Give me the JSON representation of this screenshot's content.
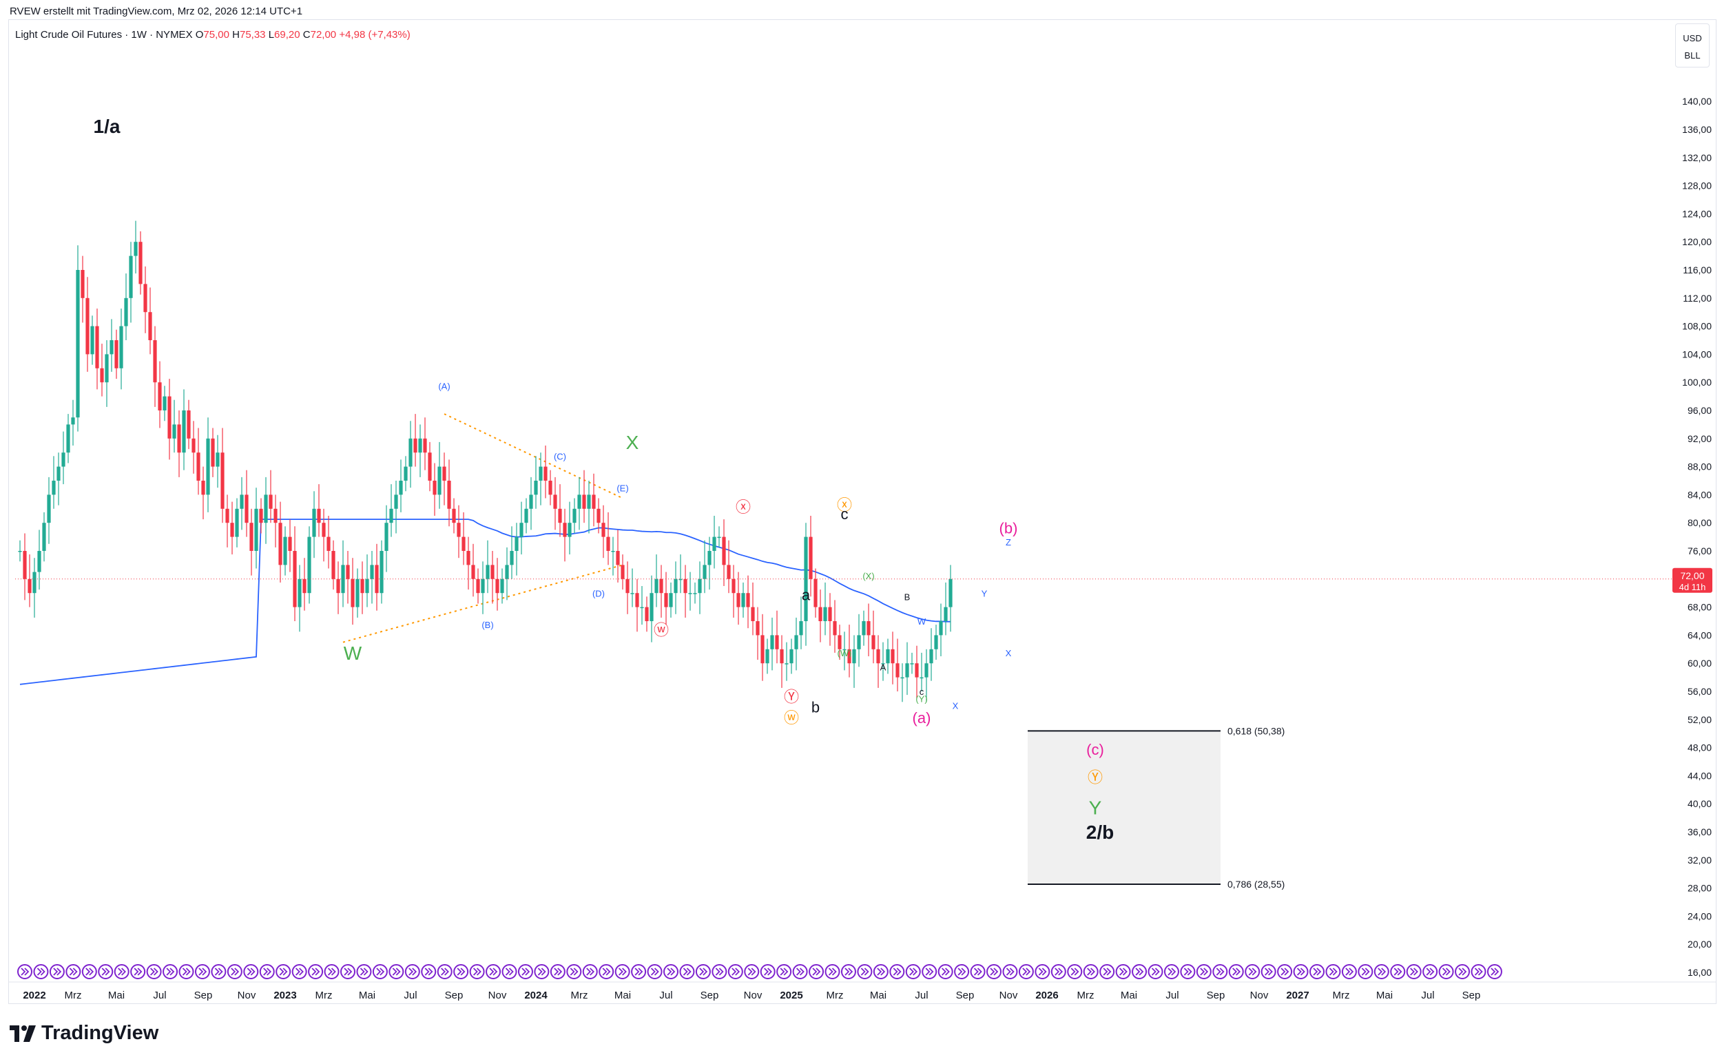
{
  "header": {
    "author_line": "RVEW erstellt mit TradingView.com, Mrz 02, 2026 12:14 UTC+1"
  },
  "legend": {
    "symbol": "Light Crude Oil Futures · 1W · NYMEX",
    "o_label": "O",
    "o_value": "75,00",
    "h_label": "H",
    "h_value": "75,33",
    "l_label": "L",
    "l_value": "69,20",
    "c_label": "C",
    "c_value": "72,00",
    "change": "+4,98 (+7,43%)"
  },
  "currency": {
    "unit": "USD",
    "measure": "BLL"
  },
  "price_label": {
    "price": "72,00",
    "countdown": "4d 11h"
  },
  "logo_text": "TradingView",
  "colors": {
    "up": "#22ab94",
    "down": "#f23645",
    "ma": "#2962ff",
    "triangle": "#ff9800",
    "green_label": "#4caf50",
    "magenta_label": "#e91e9c",
    "blue_label": "#2962ff",
    "red_label": "#f23645",
    "orange_label": "#ff9800",
    "box_fill": "#f0f0f0",
    "event_icon": "#7e22ce"
  },
  "chart_data": {
    "type": "candlestick",
    "title": "Light Crude Oil Futures · 1W · NYMEX",
    "ylim": [
      12,
      148
    ],
    "y_ticks": [
      "16,00",
      "20,00",
      "24,00",
      "28,00",
      "32,00",
      "36,00",
      "40,00",
      "44,00",
      "48,00",
      "52,00",
      "56,00",
      "60,00",
      "64,00",
      "68,00",
      "72,00",
      "76,00",
      "80,00",
      "84,00",
      "88,00",
      "92,00",
      "96,00",
      "100,00",
      "104,00",
      "108,00",
      "112,00",
      "116,00",
      "120,00",
      "124,00",
      "128,00",
      "132,00",
      "136,00",
      "140,00"
    ],
    "y_tick_values": [
      16,
      20,
      24,
      28,
      32,
      36,
      40,
      44,
      48,
      52,
      56,
      60,
      64,
      68,
      72,
      76,
      80,
      84,
      88,
      92,
      96,
      100,
      104,
      108,
      112,
      116,
      120,
      124,
      128,
      132,
      136,
      140
    ],
    "x_ticks": [
      "2022",
      "Mrz",
      "Mai",
      "Jul",
      "Sep",
      "Nov",
      "2023",
      "Mrz",
      "Mai",
      "Jul",
      "Sep",
      "Nov",
      "2024",
      "Mrz",
      "Mai",
      "Jul",
      "Sep",
      "Nov",
      "2025",
      "Mrz",
      "Mai",
      "Jul",
      "Sep",
      "Nov",
      "2026",
      "Mrz",
      "Mai",
      "Jul",
      "Sep",
      "Nov",
      "2027",
      "Mrz",
      "Mai",
      "Jul",
      "Sep"
    ],
    "x_tick_bold": [
      true,
      false,
      false,
      false,
      false,
      false,
      true,
      false,
      false,
      false,
      false,
      false,
      true,
      false,
      false,
      false,
      false,
      false,
      true,
      false,
      false,
      false,
      false,
      false,
      true,
      false,
      false,
      false,
      false,
      false,
      true,
      false,
      false,
      false,
      false
    ],
    "x_tick_week": [
      4,
      12,
      21,
      30,
      39,
      48,
      56,
      64,
      73,
      82,
      91,
      100,
      108,
      117,
      126,
      135,
      144,
      153,
      161,
      170,
      179,
      188,
      197,
      206,
      214,
      222,
      231,
      240,
      249,
      258,
      266,
      275,
      284,
      293,
      302
    ],
    "candles_weekly_close": [
      76,
      72,
      70,
      73,
      76,
      80,
      84,
      86,
      88,
      90,
      94,
      95,
      116,
      112,
      104,
      108,
      102,
      100,
      104,
      106,
      102,
      108,
      112,
      118,
      120,
      114,
      110,
      106,
      100,
      96,
      98,
      92,
      94,
      90,
      96,
      92,
      90,
      86,
      84,
      92,
      88,
      90,
      82,
      80,
      78,
      82,
      84,
      80,
      76,
      82,
      80,
      84,
      82,
      80,
      74,
      78,
      76,
      68,
      72,
      70,
      78,
      82,
      80,
      78,
      76,
      72,
      70,
      74,
      72,
      68,
      72,
      70,
      72,
      74,
      70,
      76,
      80,
      82,
      84,
      86,
      88,
      92,
      90,
      92,
      90,
      86,
      84,
      88,
      86,
      82,
      80,
      78,
      76,
      74,
      72,
      70,
      72,
      74,
      72,
      70,
      72,
      74,
      76,
      78,
      80,
      82,
      84,
      86,
      88,
      86,
      84,
      82,
      80,
      78,
      80,
      82,
      84,
      82,
      84,
      82,
      80,
      78,
      76,
      76,
      74,
      72,
      70,
      70,
      68,
      68,
      66,
      70,
      72,
      70,
      68,
      70,
      72,
      72,
      70,
      70,
      70,
      72,
      74,
      76,
      78,
      78,
      74,
      72,
      70,
      68,
      70,
      68,
      66,
      64,
      60,
      62,
      64,
      62,
      60,
      60,
      62,
      64,
      66,
      78,
      72,
      68,
      66,
      68,
      66,
      64,
      62,
      62,
      60,
      62,
      64,
      66,
      64,
      62,
      60,
      60,
      62,
      60,
      58,
      58,
      60,
      60,
      58,
      58,
      60,
      62,
      64,
      66,
      68,
      72
    ],
    "annotations": [
      {
        "text": "1/a",
        "color": "#131722",
        "size": "large",
        "bold": true,
        "price": 135.5,
        "week": 19
      },
      {
        "text": "W",
        "color": "#4caf50",
        "size": "large",
        "price": 60.5,
        "week": 70
      },
      {
        "text": "X",
        "color": "#4caf50",
        "size": "large",
        "price": 90.5,
        "week": 128
      },
      {
        "text": "(A)",
        "color": "#2962ff",
        "size": "small",
        "price": 99,
        "week": 89
      },
      {
        "text": "(B)",
        "color": "#2962ff",
        "size": "small",
        "price": 65,
        "week": 98
      },
      {
        "text": "(C)",
        "color": "#2962ff",
        "size": "small",
        "price": 89,
        "week": 113
      },
      {
        "text": "(D)",
        "color": "#2962ff",
        "size": "small",
        "price": 69.5,
        "week": 121
      },
      {
        "text": "(E)",
        "color": "#2962ff",
        "size": "small",
        "price": 84.5,
        "week": 126
      },
      {
        "text": "ⓧ",
        "color": "#f23645",
        "size": "mid",
        "price": 81.5,
        "week": 151
      },
      {
        "text": "ⓦ",
        "color": "#f23645",
        "size": "mid",
        "price": 64,
        "week": 134
      },
      {
        "text": "Ⓨ",
        "color": "#f23645",
        "size": "mid",
        "price": 54.5,
        "week": 161
      },
      {
        "text": "ⓦ",
        "color": "#ff9800",
        "size": "mid",
        "price": 51.5,
        "week": 161
      },
      {
        "text": "ⓧ",
        "color": "#ff9800",
        "size": "mid",
        "price": 81.8,
        "week": 172
      },
      {
        "text": "c",
        "color": "#131722",
        "size": "mid",
        "price": 80.5,
        "week": 172
      },
      {
        "text": "a",
        "color": "#131722",
        "size": "mid",
        "price": 69,
        "week": 164
      },
      {
        "text": "b",
        "color": "#131722",
        "size": "mid",
        "price": 53,
        "week": 166
      },
      {
        "text": "(X)",
        "color": "#4caf50",
        "size": "small",
        "price": 72,
        "week": 177
      },
      {
        "text": "(W)",
        "color": "#4caf50",
        "size": "small",
        "price": 61,
        "week": 172
      },
      {
        "text": "B",
        "color": "#131722",
        "size": "small",
        "price": 69,
        "week": 185
      },
      {
        "text": "A",
        "color": "#131722",
        "size": "small",
        "price": 59,
        "week": 180
      },
      {
        "text": "W",
        "color": "#2962ff",
        "size": "small",
        "price": 65.5,
        "week": 188
      },
      {
        "text": "c",
        "color": "#131722",
        "size": "small",
        "price": 55.5,
        "week": 188
      },
      {
        "text": "(Y)",
        "color": "#4caf50",
        "size": "small",
        "price": 54.5,
        "week": 188
      },
      {
        "text": "(a)",
        "color": "#e91e9c",
        "size": "mid",
        "price": 51.5,
        "week": 188
      },
      {
        "text": "X",
        "color": "#2962ff",
        "size": "small",
        "price": 53.5,
        "week": 195
      },
      {
        "text": "Y",
        "color": "#2962ff",
        "size": "small",
        "price": 69.5,
        "week": 201
      },
      {
        "text": "X",
        "color": "#2962ff",
        "size": "small",
        "price": 61,
        "week": 206
      },
      {
        "text": "(b)",
        "color": "#e91e9c",
        "size": "mid",
        "price": 78.5,
        "week": 206
      },
      {
        "text": "Z",
        "color": "#2962ff",
        "size": "small",
        "price": 76.8,
        "week": 206
      },
      {
        "text": "(c)",
        "color": "#e91e9c",
        "size": "mid",
        "price": 47,
        "week": 224
      },
      {
        "text": "Ⓨ",
        "color": "#ff9800",
        "size": "mid",
        "price": 43,
        "week": 224
      },
      {
        "text": "Y",
        "color": "#4caf50",
        "size": "large",
        "price": 38.5,
        "week": 224
      },
      {
        "text": "2/b",
        "color": "#131722",
        "size": "large",
        "bold": true,
        "price": 35,
        "week": 225
      }
    ],
    "fib_levels": [
      {
        "label": "0,618 (50,38)",
        "value": 50.38
      },
      {
        "label": "0,786 (28,55)",
        "value": 28.55
      }
    ]
  }
}
